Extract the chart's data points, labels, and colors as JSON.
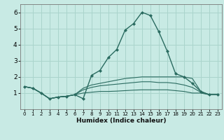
{
  "xlabel": "Humidex (Indice chaleur)",
  "xlim": [
    -0.5,
    23.5
  ],
  "ylim": [
    0,
    6.5
  ],
  "xticks": [
    0,
    1,
    2,
    3,
    4,
    5,
    6,
    7,
    8,
    9,
    10,
    11,
    12,
    13,
    14,
    15,
    16,
    17,
    18,
    19,
    20,
    21,
    22,
    23
  ],
  "yticks": [
    1,
    2,
    3,
    4,
    5,
    6
  ],
  "bg_color": "#c8eae4",
  "grid_color": "#aad4cc",
  "line_color": "#2a6b60",
  "curves": [
    {
      "x": [
        0,
        1,
        2,
        3,
        4,
        5,
        6,
        7,
        8,
        9,
        10,
        11,
        12,
        13,
        14,
        15,
        16,
        17,
        18,
        19,
        20,
        21,
        22,
        23
      ],
      "y": [
        1.4,
        1.3,
        1.0,
        0.65,
        0.75,
        0.8,
        0.9,
        0.65,
        2.1,
        2.4,
        3.2,
        3.7,
        4.9,
        5.3,
        6.0,
        5.8,
        4.8,
        3.6,
        2.2,
        2.0,
        1.6,
        1.1,
        0.9,
        0.9
      ],
      "marker": true
    },
    {
      "x": [
        0,
        1,
        2,
        3,
        4,
        5,
        6,
        7,
        8,
        9,
        10,
        11,
        12,
        13,
        14,
        15,
        16,
        17,
        18,
        19,
        20,
        21,
        22,
        23
      ],
      "y": [
        1.4,
        1.3,
        1.0,
        0.65,
        0.75,
        0.8,
        0.9,
        1.3,
        1.5,
        1.6,
        1.7,
        1.8,
        1.9,
        1.95,
        2.0,
        2.0,
        2.0,
        2.0,
        2.0,
        2.0,
        1.9,
        1.1,
        0.9,
        0.9
      ],
      "marker": false
    },
    {
      "x": [
        0,
        1,
        2,
        3,
        4,
        5,
        6,
        7,
        8,
        9,
        10,
        11,
        12,
        13,
        14,
        15,
        16,
        17,
        18,
        19,
        20,
        21,
        22,
        23
      ],
      "y": [
        1.4,
        1.3,
        1.0,
        0.65,
        0.75,
        0.8,
        0.9,
        1.2,
        1.35,
        1.45,
        1.5,
        1.55,
        1.6,
        1.65,
        1.7,
        1.7,
        1.65,
        1.65,
        1.6,
        1.5,
        1.35,
        1.05,
        0.9,
        0.9
      ],
      "marker": false
    },
    {
      "x": [
        0,
        1,
        2,
        3,
        4,
        5,
        6,
        7,
        8,
        9,
        10,
        11,
        12,
        13,
        14,
        15,
        16,
        17,
        18,
        19,
        20,
        21,
        22,
        23
      ],
      "y": [
        1.4,
        1.3,
        1.0,
        0.65,
        0.75,
        0.8,
        0.9,
        1.0,
        1.05,
        1.1,
        1.1,
        1.12,
        1.15,
        1.18,
        1.2,
        1.2,
        1.2,
        1.2,
        1.15,
        1.1,
        1.0,
        1.0,
        0.9,
        0.9
      ],
      "marker": false
    }
  ]
}
